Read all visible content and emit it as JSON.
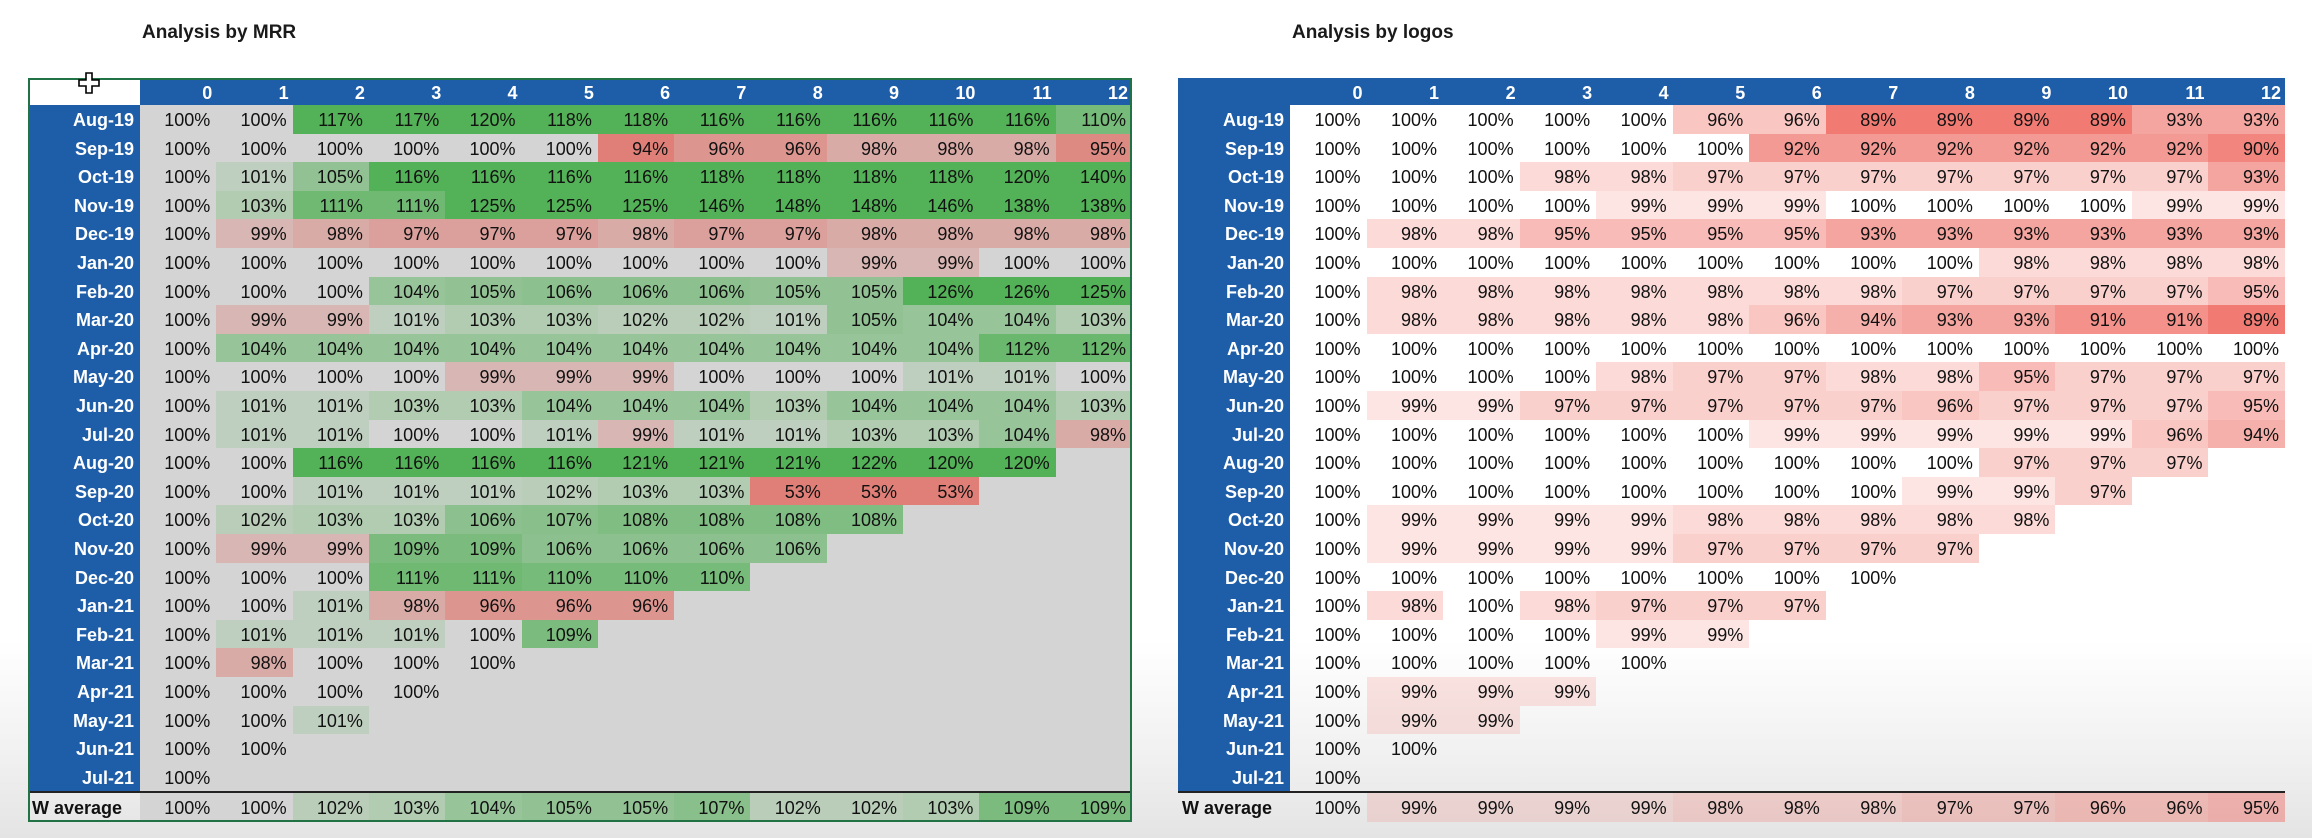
{
  "mrr": {
    "title": "Analysis by MRR",
    "periods": [
      "0",
      "1",
      "2",
      "3",
      "4",
      "5",
      "6",
      "7",
      "8",
      "9",
      "10",
      "11",
      "12"
    ],
    "cohorts": [
      "Aug-19",
      "Sep-19",
      "Oct-19",
      "Nov-19",
      "Dec-19",
      "Jan-20",
      "Feb-20",
      "Mar-20",
      "Apr-20",
      "May-20",
      "Jun-20",
      "Jul-20",
      "Aug-20",
      "Sep-20",
      "Oct-20",
      "Nov-20",
      "Dec-20",
      "Jan-21",
      "Feb-21",
      "Mar-21",
      "Apr-21",
      "May-21",
      "Jun-21",
      "Jul-21"
    ],
    "rows": [
      [
        "100%",
        "100%",
        "117%",
        "117%",
        "120%",
        "118%",
        "118%",
        "116%",
        "116%",
        "116%",
        "116%",
        "116%",
        "110%"
      ],
      [
        "100%",
        "100%",
        "100%",
        "100%",
        "100%",
        "100%",
        "94%",
        "96%",
        "96%",
        "98%",
        "98%",
        "98%",
        "95%"
      ],
      [
        "100%",
        "101%",
        "105%",
        "116%",
        "116%",
        "116%",
        "116%",
        "118%",
        "118%",
        "118%",
        "118%",
        "120%",
        "140%"
      ],
      [
        "100%",
        "103%",
        "111%",
        "111%",
        "125%",
        "125%",
        "125%",
        "146%",
        "148%",
        "148%",
        "146%",
        "138%",
        "138%"
      ],
      [
        "100%",
        "99%",
        "98%",
        "97%",
        "97%",
        "97%",
        "98%",
        "97%",
        "97%",
        "98%",
        "98%",
        "98%",
        "98%"
      ],
      [
        "100%",
        "100%",
        "100%",
        "100%",
        "100%",
        "100%",
        "100%",
        "100%",
        "100%",
        "99%",
        "99%",
        "100%",
        "100%"
      ],
      [
        "100%",
        "100%",
        "100%",
        "104%",
        "105%",
        "106%",
        "106%",
        "106%",
        "105%",
        "105%",
        "126%",
        "126%",
        "125%"
      ],
      [
        "100%",
        "99%",
        "99%",
        "101%",
        "103%",
        "103%",
        "102%",
        "102%",
        "101%",
        "105%",
        "104%",
        "104%",
        "103%"
      ],
      [
        "100%",
        "104%",
        "104%",
        "104%",
        "104%",
        "104%",
        "104%",
        "104%",
        "104%",
        "104%",
        "104%",
        "112%",
        "112%"
      ],
      [
        "100%",
        "100%",
        "100%",
        "100%",
        "99%",
        "99%",
        "99%",
        "100%",
        "100%",
        "100%",
        "101%",
        "101%",
        "100%"
      ],
      [
        "100%",
        "101%",
        "101%",
        "103%",
        "103%",
        "104%",
        "104%",
        "104%",
        "103%",
        "104%",
        "104%",
        "104%",
        "103%"
      ],
      [
        "100%",
        "101%",
        "101%",
        "100%",
        "100%",
        "101%",
        "99%",
        "101%",
        "101%",
        "103%",
        "103%",
        "104%",
        "98%"
      ],
      [
        "100%",
        "100%",
        "116%",
        "116%",
        "116%",
        "116%",
        "121%",
        "121%",
        "121%",
        "122%",
        "120%",
        "120%"
      ],
      [
        "100%",
        "100%",
        "101%",
        "101%",
        "101%",
        "102%",
        "103%",
        "103%",
        "53%",
        "53%",
        "53%"
      ],
      [
        "100%",
        "102%",
        "103%",
        "103%",
        "106%",
        "107%",
        "108%",
        "108%",
        "108%",
        "108%"
      ],
      [
        "100%",
        "99%",
        "99%",
        "109%",
        "109%",
        "106%",
        "106%",
        "106%",
        "106%"
      ],
      [
        "100%",
        "100%",
        "100%",
        "111%",
        "111%",
        "110%",
        "110%",
        "110%"
      ],
      [
        "100%",
        "100%",
        "101%",
        "98%",
        "96%",
        "96%",
        "96%"
      ],
      [
        "100%",
        "101%",
        "101%",
        "101%",
        "100%",
        "109%"
      ],
      [
        "100%",
        "98%",
        "100%",
        "100%",
        "100%"
      ],
      [
        "100%",
        "100%",
        "100%",
        "100%"
      ],
      [
        "100%",
        "100%",
        "101%"
      ],
      [
        "100%",
        "100%"
      ],
      [
        "100%"
      ]
    ],
    "avg_label": "W average",
    "avg": [
      "100%",
      "100%",
      "102%",
      "103%",
      "104%",
      "105%",
      "105%",
      "107%",
      "102%",
      "102%",
      "103%",
      "109%",
      "109%"
    ]
  },
  "logos": {
    "title": "Analysis by logos",
    "periods": [
      "0",
      "1",
      "2",
      "3",
      "4",
      "5",
      "6",
      "7",
      "8",
      "9",
      "10",
      "11",
      "12"
    ],
    "cohorts": [
      "Aug-19",
      "Sep-19",
      "Oct-19",
      "Nov-19",
      "Dec-19",
      "Jan-20",
      "Feb-20",
      "Mar-20",
      "Apr-20",
      "May-20",
      "Jun-20",
      "Jul-20",
      "Aug-20",
      "Sep-20",
      "Oct-20",
      "Nov-20",
      "Dec-20",
      "Jan-21",
      "Feb-21",
      "Mar-21",
      "Apr-21",
      "May-21",
      "Jun-21",
      "Jul-21"
    ],
    "rows": [
      [
        "100%",
        "100%",
        "100%",
        "100%",
        "100%",
        "96%",
        "96%",
        "89%",
        "89%",
        "89%",
        "89%",
        "93%",
        "93%"
      ],
      [
        "100%",
        "100%",
        "100%",
        "100%",
        "100%",
        "100%",
        "92%",
        "92%",
        "92%",
        "92%",
        "92%",
        "92%",
        "90%"
      ],
      [
        "100%",
        "100%",
        "100%",
        "98%",
        "98%",
        "97%",
        "97%",
        "97%",
        "97%",
        "97%",
        "97%",
        "97%",
        "93%"
      ],
      [
        "100%",
        "100%",
        "100%",
        "100%",
        "99%",
        "99%",
        "99%",
        "100%",
        "100%",
        "100%",
        "100%",
        "99%",
        "99%"
      ],
      [
        "100%",
        "98%",
        "98%",
        "95%",
        "95%",
        "95%",
        "95%",
        "93%",
        "93%",
        "93%",
        "93%",
        "93%",
        "93%"
      ],
      [
        "100%",
        "100%",
        "100%",
        "100%",
        "100%",
        "100%",
        "100%",
        "100%",
        "100%",
        "98%",
        "98%",
        "98%",
        "98%"
      ],
      [
        "100%",
        "98%",
        "98%",
        "98%",
        "98%",
        "98%",
        "98%",
        "98%",
        "97%",
        "97%",
        "97%",
        "97%",
        "95%"
      ],
      [
        "100%",
        "98%",
        "98%",
        "98%",
        "98%",
        "98%",
        "96%",
        "94%",
        "93%",
        "93%",
        "91%",
        "91%",
        "89%"
      ],
      [
        "100%",
        "100%",
        "100%",
        "100%",
        "100%",
        "100%",
        "100%",
        "100%",
        "100%",
        "100%",
        "100%",
        "100%",
        "100%"
      ],
      [
        "100%",
        "100%",
        "100%",
        "100%",
        "98%",
        "97%",
        "97%",
        "98%",
        "98%",
        "95%",
        "97%",
        "97%",
        "97%"
      ],
      [
        "100%",
        "99%",
        "99%",
        "97%",
        "97%",
        "97%",
        "97%",
        "97%",
        "96%",
        "97%",
        "97%",
        "97%",
        "95%"
      ],
      [
        "100%",
        "100%",
        "100%",
        "100%",
        "100%",
        "100%",
        "99%",
        "99%",
        "99%",
        "99%",
        "99%",
        "96%",
        "94%"
      ],
      [
        "100%",
        "100%",
        "100%",
        "100%",
        "100%",
        "100%",
        "100%",
        "100%",
        "100%",
        "97%",
        "97%",
        "97%"
      ],
      [
        "100%",
        "100%",
        "100%",
        "100%",
        "100%",
        "100%",
        "100%",
        "100%",
        "99%",
        "99%",
        "97%"
      ],
      [
        "100%",
        "99%",
        "99%",
        "99%",
        "99%",
        "98%",
        "98%",
        "98%",
        "98%",
        "98%"
      ],
      [
        "100%",
        "99%",
        "99%",
        "99%",
        "99%",
        "97%",
        "97%",
        "97%",
        "97%"
      ],
      [
        "100%",
        "100%",
        "100%",
        "100%",
        "100%",
        "100%",
        "100%",
        "100%"
      ],
      [
        "100%",
        "98%",
        "100%",
        "98%",
        "97%",
        "97%",
        "97%"
      ],
      [
        "100%",
        "100%",
        "100%",
        "100%",
        "99%",
        "99%"
      ],
      [
        "100%",
        "100%",
        "100%",
        "100%",
        "100%"
      ],
      [
        "100%",
        "99%",
        "99%",
        "99%"
      ],
      [
        "100%",
        "99%",
        "99%"
      ],
      [
        "100%",
        "100%"
      ],
      [
        "100%"
      ]
    ],
    "avg_label": "W average",
    "avg": [
      "100%",
      "99%",
      "99%",
      "99%",
      "99%",
      "98%",
      "98%",
      "98%",
      "97%",
      "97%",
      "96%",
      "96%",
      "95%"
    ]
  },
  "colors": {
    "header_blue": "#1e5da8",
    "mrr_background": "#d4d4d4",
    "positive": "#4caf50",
    "negative": "#e8746a",
    "selection_border": "#217346"
  }
}
